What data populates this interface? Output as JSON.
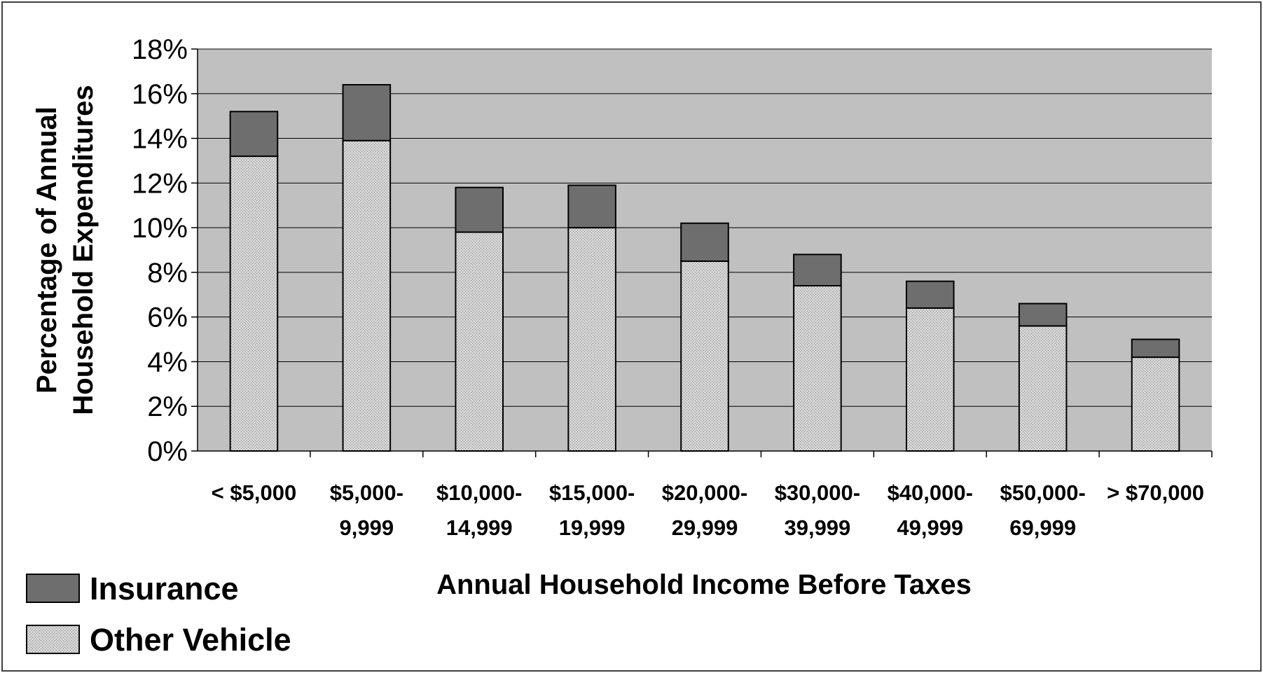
{
  "chart_data": {
    "type": "bar",
    "stacked": true,
    "categories": [
      "< $5,000",
      "$5,000-\n9,999",
      "$10,000-\n14,999",
      "$15,000-\n19,999",
      "$20,000-\n29,999",
      "$30,000-\n39,999",
      "$40,000-\n49,999",
      "$50,000-\n69,999",
      "> $70,000"
    ],
    "series": [
      {
        "name": "Other Vehicle",
        "values": [
          13.2,
          13.9,
          9.8,
          10.0,
          8.5,
          7.4,
          6.4,
          5.6,
          4.2
        ],
        "color": "#c8c8c8",
        "pattern": "dotted"
      },
      {
        "name": "Insurance",
        "values": [
          2.0,
          2.5,
          2.0,
          1.9,
          1.7,
          1.4,
          1.2,
          1.0,
          0.8
        ],
        "color": "#6e6e6e",
        "pattern": "solid"
      }
    ],
    "xlabel": "Annual Household Income Before Taxes",
    "ylabel": "Percentage of Annual Household Expenditures",
    "ylim": [
      0,
      18
    ],
    "yticks": [
      "0%",
      "2%",
      "4%",
      "6%",
      "8%",
      "10%",
      "12%",
      "14%",
      "16%",
      "18%"
    ],
    "grid": true,
    "plot_background": "#c0c0c0",
    "legend_position": "bottom-left"
  }
}
